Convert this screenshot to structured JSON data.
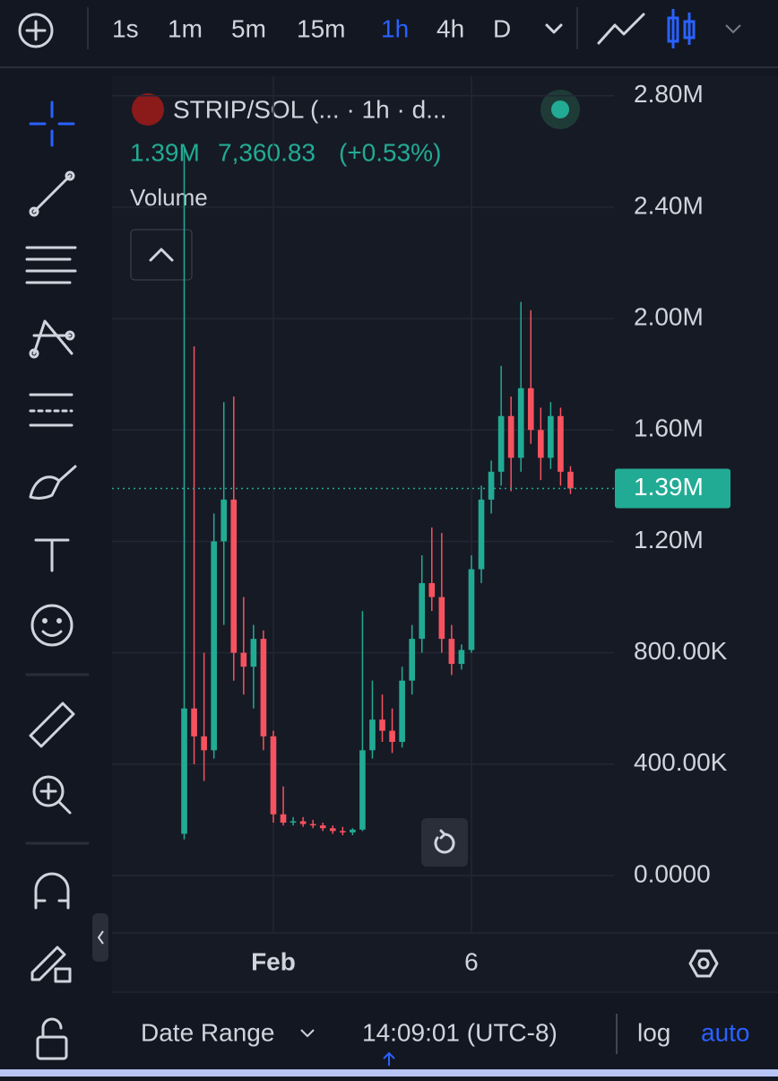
{
  "toolbar": {
    "timeframes": [
      "1s",
      "1m",
      "5m",
      "15m",
      "1h",
      "4h",
      "D"
    ],
    "active": "1h"
  },
  "legend": {
    "symbol": "STRIP/SOL (... · 1h · d...",
    "last": "1.39M",
    "change_value": "7,360.83",
    "change_pct": "(+0.53%)",
    "indicator": "Volume"
  },
  "footer": {
    "date_range": "Date Range",
    "time": "14:09:01 (UTC-8)",
    "log": "log",
    "auto": "auto"
  },
  "chart_data": {
    "type": "candlestick",
    "up_color": "#22ab94",
    "down_color": "#f7525f",
    "categories": [
      null,
      null,
      null,
      null,
      null,
      null,
      null,
      null,
      null,
      "Feb",
      null,
      null,
      null,
      null,
      null,
      null,
      null,
      null,
      null,
      null,
      null,
      null,
      null,
      null,
      null,
      null,
      null,
      null,
      null,
      "6",
      null,
      null,
      null,
      null,
      null,
      null,
      null,
      null,
      null,
      null
    ],
    "open": [
      150000,
      600000,
      500000,
      450000,
      1200000,
      1350000,
      800000,
      750000,
      850000,
      500000,
      220000,
      190000,
      195000,
      185000,
      180000,
      170000,
      160000,
      155000,
      165000,
      450000,
      560000,
      520000,
      480000,
      700000,
      850000,
      1050000,
      1000000,
      850000,
      760000,
      810000,
      1100000,
      1350000,
      1450000,
      1650000,
      1500000,
      1750000,
      1600000,
      1500000,
      1650000,
      1450000
    ],
    "high": [
      2610000,
      1900000,
      800000,
      1300000,
      1700000,
      1720000,
      1000000,
      900000,
      880000,
      520000,
      320000,
      210000,
      210000,
      200000,
      190000,
      180000,
      175000,
      170000,
      950000,
      700000,
      650000,
      600000,
      750000,
      900000,
      1150000,
      1250000,
      1230000,
      900000,
      830000,
      1150000,
      1400000,
      1490000,
      1830000,
      1720000,
      2060000,
      2030000,
      1680000,
      1700000,
      1680000,
      1470000
    ],
    "low": [
      130000,
      400000,
      340000,
      420000,
      900000,
      700000,
      650000,
      600000,
      450000,
      190000,
      180000,
      180000,
      175000,
      170000,
      160000,
      150000,
      145000,
      145000,
      160000,
      420000,
      480000,
      440000,
      460000,
      650000,
      800000,
      950000,
      800000,
      720000,
      740000,
      800000,
      1050000,
      1300000,
      1400000,
      1380000,
      1450000,
      1550000,
      1420000,
      1460000,
      1400000,
      1370000
    ],
    "close": [
      600000,
      500000,
      450000,
      1200000,
      1350000,
      800000,
      750000,
      850000,
      500000,
      220000,
      190000,
      195000,
      185000,
      180000,
      170000,
      160000,
      155000,
      165000,
      450000,
      560000,
      520000,
      480000,
      700000,
      850000,
      1050000,
      1000000,
      850000,
      760000,
      810000,
      1100000,
      1350000,
      1450000,
      1650000,
      1500000,
      1750000,
      1600000,
      1500000,
      1650000,
      1450000,
      1390000
    ],
    "last_price": {
      "value": 1390000,
      "label": "1.39M"
    },
    "ylim": [
      -190000,
      2870000
    ],
    "yticks": [
      {
        "value": 0,
        "label": "0.0000"
      },
      {
        "value": 400000,
        "label": "400.00K"
      },
      {
        "value": 800000,
        "label": "800.00K"
      },
      {
        "value": 1200000,
        "label": "1.20M"
      },
      {
        "value": 1600000,
        "label": "1.60M"
      },
      {
        "value": 2000000,
        "label": "2.00M"
      },
      {
        "value": 2400000,
        "label": "2.40M"
      },
      {
        "value": 2800000,
        "label": "2.80M"
      }
    ],
    "grid": true
  }
}
